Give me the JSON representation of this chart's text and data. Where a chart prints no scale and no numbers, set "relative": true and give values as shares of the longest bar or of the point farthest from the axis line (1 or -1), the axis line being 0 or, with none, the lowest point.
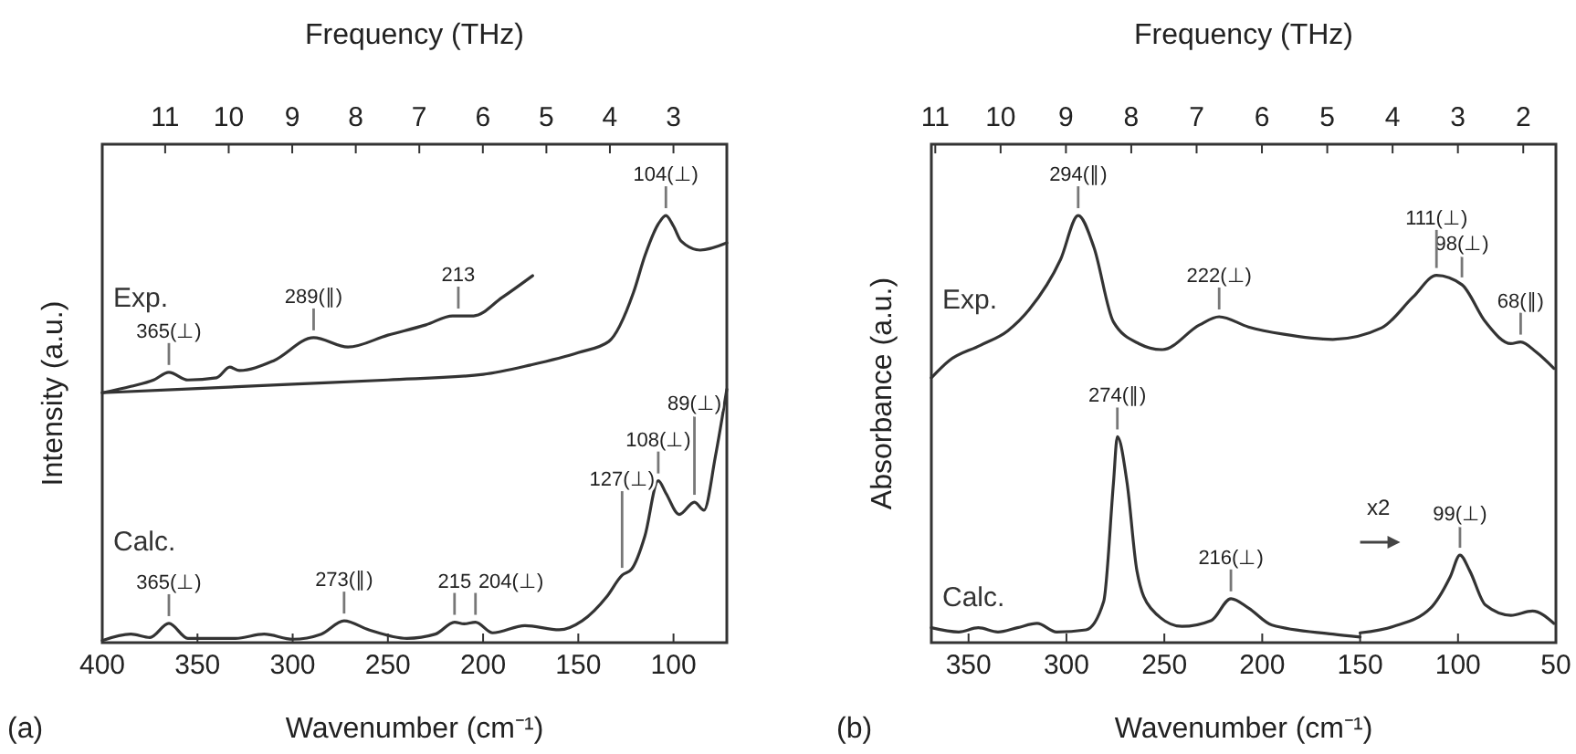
{
  "chart_data": [
    {
      "type": "line",
      "title": "(a)",
      "xlabel": "Wavenumber (cm⁻¹)",
      "ylabel": "Intensity (a.u.)",
      "x2label": "Frequency (THz)",
      "relative": true,
      "xlim": [
        400,
        72
      ],
      "xticks": [
        400,
        350,
        300,
        250,
        200,
        150,
        100
      ],
      "x2lim": [
        11.99,
        2.16
      ],
      "x2ticks": [
        11,
        10,
        9,
        8,
        7,
        6,
        5,
        4,
        3
      ],
      "series": [
        {
          "name": "Exp.",
          "color": "#333333",
          "x": [
            400,
            350,
            300,
            250,
            200,
            175,
            150,
            134,
            121,
            115,
            108,
            104,
            100,
            96,
            86,
            72
          ],
          "values": [
            0.585,
            0.595,
            0.605,
            0.615,
            0.628,
            0.65,
            0.679,
            0.705,
            0.82,
            0.906,
            0.98,
            1.0,
            0.975,
            0.94,
            0.919,
            0.936
          ]
        },
        {
          "color": "#333333",
          "x": [
            400,
            385,
            373,
            365,
            355,
            340,
            333,
            328,
            310,
            289,
            271,
            250,
            230,
            216,
            205,
            190,
            174
          ],
          "values": [
            0.585,
            0.6,
            0.615,
            0.633,
            0.615,
            0.62,
            0.645,
            0.637,
            0.66,
            0.714,
            0.692,
            0.72,
            0.744,
            0.765,
            0.765,
            0.808,
            0.859
          ]
        },
        {
          "name": "Calc.",
          "color": "#333333",
          "x": [
            400,
            385,
            375,
            365,
            355,
            330,
            315,
            300,
            285,
            273,
            260,
            240,
            225,
            215,
            210,
            204,
            195,
            178,
            160,
            148,
            135,
            127,
            122,
            115,
            108,
            104,
            97,
            89,
            84,
            78,
            72
          ],
          "values": [
            0.005,
            0.02,
            0.012,
            0.045,
            0.01,
            0.01,
            0.02,
            0.008,
            0.02,
            0.051,
            0.03,
            0.01,
            0.02,
            0.048,
            0.044,
            0.048,
            0.023,
            0.04,
            0.03,
            0.051,
            0.108,
            0.158,
            0.172,
            0.25,
            0.379,
            0.35,
            0.3,
            0.329,
            0.31,
            0.436,
            0.593
          ]
        }
      ],
      "annotations": [
        {
          "text": "365(⊥)",
          "x": 365,
          "y": 0.633
        },
        {
          "text": "289(∥)",
          "x": 289,
          "y": 0.714
        },
        {
          "text": "213",
          "x": 213,
          "y": 0.765
        },
        {
          "text": "104(⊥)",
          "x": 104,
          "y": 1.0
        },
        {
          "text": "365(⊥)",
          "x": 365,
          "y": 0.045
        },
        {
          "text": "273(∥)",
          "x": 273,
          "y": 0.051
        },
        {
          "text": "215",
          "x": 215,
          "y": 0.048
        },
        {
          "text": "204(⊥)",
          "x": 204,
          "y": 0.048
        },
        {
          "text": "127(⊥)",
          "x": 127,
          "y": 0.158
        },
        {
          "text": "108(⊥)",
          "x": 108,
          "y": 0.379
        },
        {
          "text": "89(⊥)",
          "x": 89,
          "y": 0.329
        }
      ]
    },
    {
      "type": "line",
      "title": "(b)",
      "xlabel": "Wavenumber (cm⁻¹)",
      "ylabel": "Absorbance (a.u.)",
      "x2label": "Frequency (THz)",
      "relative": true,
      "xlim": [
        369,
        50
      ],
      "xticks": [
        350,
        300,
        250,
        200,
        150,
        100,
        50
      ],
      "x2lim": [
        11.06,
        1.5
      ],
      "x2ticks": [
        11,
        10,
        9,
        8,
        7,
        6,
        5,
        4,
        3,
        2
      ],
      "series": [
        {
          "name": "Exp.",
          "color": "#333333",
          "x": [
            369,
            360,
            344,
            330,
            319,
            303,
            294,
            286,
            276,
            263,
            251,
            232,
            222,
            207,
            189,
            164,
            139,
            123,
            111,
            98,
            86,
            73,
            68,
            60,
            51
          ],
          "values": [
            0.62,
            0.66,
            0.696,
            0.73,
            0.78,
            0.897,
            1.0,
            0.926,
            0.751,
            0.7,
            0.686,
            0.744,
            0.763,
            0.739,
            0.722,
            0.71,
            0.737,
            0.809,
            0.86,
            0.838,
            0.751,
            0.7,
            0.704,
            0.68,
            0.642
          ]
        },
        {
          "name": "Calc.",
          "color": "#333333",
          "x": [
            369,
            355,
            345,
            335,
            325,
            315,
            305,
            290,
            281,
            276,
            274,
            269,
            264,
            257,
            241,
            226,
            216,
            207,
            195,
            164,
            150
          ],
          "values": [
            0.035,
            0.025,
            0.035,
            0.025,
            0.035,
            0.045,
            0.025,
            0.03,
            0.096,
            0.373,
            0.482,
            0.373,
            0.168,
            0.081,
            0.038,
            0.052,
            0.103,
            0.081,
            0.041,
            0.02,
            0.013
          ]
        },
        {
          "color": "#333333",
          "x": [
            150,
            133,
            114,
            104,
            99,
            94,
            86,
            73,
            62,
            51
          ],
          "values": [
            0.023,
            0.038,
            0.081,
            0.154,
            0.205,
            0.168,
            0.088,
            0.064,
            0.074,
            0.045
          ]
        }
      ],
      "annotations": [
        {
          "text": "294(∥)",
          "x": 294,
          "y": 1.0
        },
        {
          "text": "222(⊥)",
          "x": 222,
          "y": 0.763
        },
        {
          "text": "98(⊥)",
          "x": 98,
          "y": 0.838
        },
        {
          "text": "111(⊥)",
          "x": 111,
          "y": 0.86
        },
        {
          "text": "68(∥)",
          "x": 68,
          "y": 0.704
        },
        {
          "text": "274(∥)",
          "x": 274,
          "y": 0.482
        },
        {
          "text": "216(⊥)",
          "x": 216,
          "y": 0.103
        },
        {
          "text": "99(⊥)",
          "x": 99,
          "y": 0.205
        },
        "x2"
      ]
    }
  ]
}
